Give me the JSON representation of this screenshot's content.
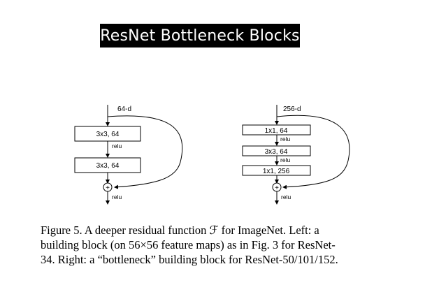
{
  "title": "ResNet Bottleneck Blocks",
  "left_block": {
    "input_label": "64-d",
    "layers": [
      "3x3, 64",
      "3x3, 64"
    ],
    "relu_between": [
      "relu"
    ],
    "output_relu": "relu",
    "add_symbol": "+"
  },
  "right_block": {
    "input_label": "256-d",
    "layers": [
      "1x1, 64",
      "3x3, 64",
      "1x1, 256"
    ],
    "relu_between": [
      "relu",
      "relu"
    ],
    "output_relu": "relu",
    "add_symbol": "+"
  },
  "caption": {
    "lines": [
      "Figure 5. A deeper residual function ℱ for ImageNet.  Left:  a",
      "building block (on 56×56 feature maps) as in Fig. 3 for ResNet-",
      "34. Right: a “bottleneck” building block for ResNet-50/101/152."
    ]
  }
}
